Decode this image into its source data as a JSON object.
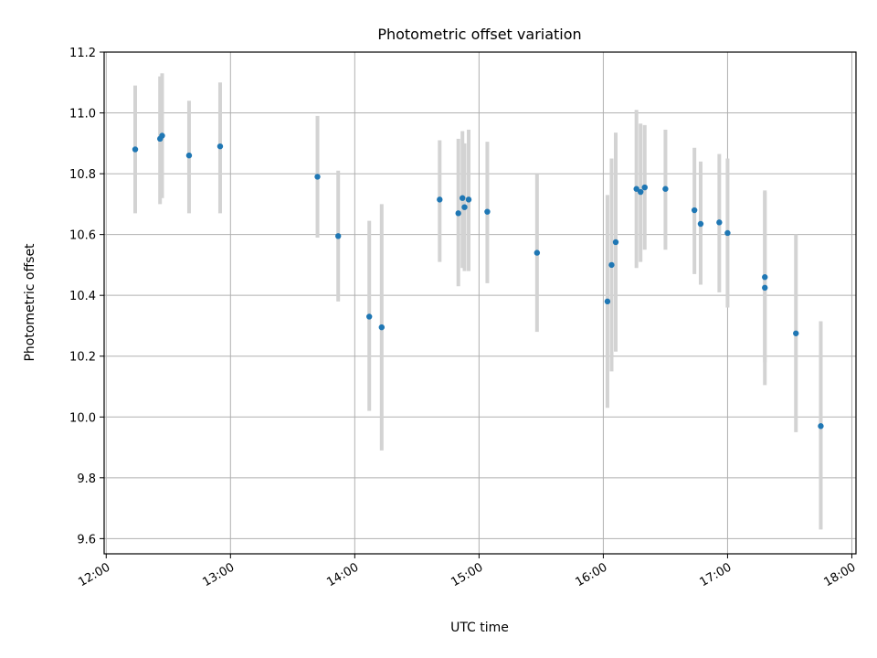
{
  "chart_data": {
    "type": "scatter",
    "title": "Photometric offset variation",
    "xlabel": "UTC time",
    "ylabel": "Photometric offset",
    "xlim": [
      "11:59",
      "18:02"
    ],
    "ylim": [
      9.55,
      11.2
    ],
    "x_ticks": [
      "12:00",
      "13:00",
      "14:00",
      "15:00",
      "16:00",
      "17:00",
      "18:00"
    ],
    "y_ticks": [
      "9.6",
      "9.8",
      "10.0",
      "10.2",
      "10.4",
      "10.6",
      "10.8",
      "11.0",
      "11.2"
    ],
    "grid": true,
    "error_bar_color": "#d3d3d3",
    "marker_color": "#1f77b4",
    "points": [
      {
        "time": "12:14",
        "y": 10.88,
        "ylow": 10.67,
        "yhigh": 11.09
      },
      {
        "time": "12:26",
        "y": 10.915,
        "ylow": 10.7,
        "yhigh": 11.12
      },
      {
        "time": "12:27",
        "y": 10.925,
        "ylow": 10.72,
        "yhigh": 11.13
      },
      {
        "time": "12:40",
        "y": 10.86,
        "ylow": 10.67,
        "yhigh": 11.04
      },
      {
        "time": "12:55",
        "y": 10.89,
        "ylow": 10.67,
        "yhigh": 11.1
      },
      {
        "time": "13:42",
        "y": 10.79,
        "ylow": 10.59,
        "yhigh": 10.99
      },
      {
        "time": "13:52",
        "y": 10.595,
        "ylow": 10.38,
        "yhigh": 10.81
      },
      {
        "time": "14:07",
        "y": 10.33,
        "ylow": 10.02,
        "yhigh": 10.645
      },
      {
        "time": "14:13",
        "y": 10.295,
        "ylow": 9.89,
        "yhigh": 10.7
      },
      {
        "time": "14:41",
        "y": 10.715,
        "ylow": 10.51,
        "yhigh": 10.91
      },
      {
        "time": "14:50",
        "y": 10.67,
        "ylow": 10.43,
        "yhigh": 10.915
      },
      {
        "time": "14:52",
        "y": 10.72,
        "ylow": 10.49,
        "yhigh": 10.94
      },
      {
        "time": "14:53",
        "y": 10.69,
        "ylow": 10.48,
        "yhigh": 10.9
      },
      {
        "time": "14:55",
        "y": 10.715,
        "ylow": 10.48,
        "yhigh": 10.945
      },
      {
        "time": "15:04",
        "y": 10.675,
        "ylow": 10.44,
        "yhigh": 10.905
      },
      {
        "time": "15:28",
        "y": 10.54,
        "ylow": 10.28,
        "yhigh": 10.8
      },
      {
        "time": "16:02",
        "y": 10.38,
        "ylow": 10.03,
        "yhigh": 10.73
      },
      {
        "time": "16:04",
        "y": 10.5,
        "ylow": 10.15,
        "yhigh": 10.85
      },
      {
        "time": "16:06",
        "y": 10.575,
        "ylow": 10.215,
        "yhigh": 10.935
      },
      {
        "time": "16:16",
        "y": 10.75,
        "ylow": 10.49,
        "yhigh": 11.01
      },
      {
        "time": "16:18",
        "y": 10.74,
        "ylow": 10.51,
        "yhigh": 10.965
      },
      {
        "time": "16:20",
        "y": 10.755,
        "ylow": 10.55,
        "yhigh": 10.96
      },
      {
        "time": "16:30",
        "y": 10.75,
        "ylow": 10.55,
        "yhigh": 10.945
      },
      {
        "time": "16:44",
        "y": 10.68,
        "ylow": 10.47,
        "yhigh": 10.885
      },
      {
        "time": "16:47",
        "y": 10.635,
        "ylow": 10.435,
        "yhigh": 10.84
      },
      {
        "time": "16:56",
        "y": 10.64,
        "ylow": 10.41,
        "yhigh": 10.865
      },
      {
        "time": "17:00",
        "y": 10.605,
        "ylow": 10.36,
        "yhigh": 10.85
      },
      {
        "time": "17:18",
        "y": 10.425,
        "ylow": 10.105,
        "yhigh": 10.74
      },
      {
        "time": "17:18",
        "y": 10.46,
        "ylow": 10.18,
        "yhigh": 10.745
      },
      {
        "time": "17:33",
        "y": 10.275,
        "ylow": 9.95,
        "yhigh": 10.6
      },
      {
        "time": "17:45",
        "y": 9.97,
        "ylow": 9.63,
        "yhigh": 10.315
      }
    ]
  }
}
